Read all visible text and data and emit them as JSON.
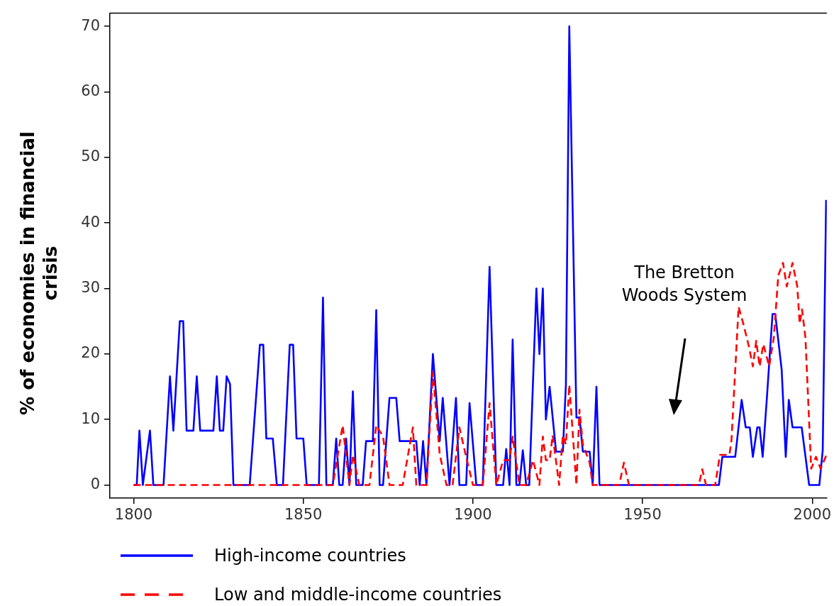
{
  "chart_data": {
    "type": "line",
    "ylabel": "% of economies in financial crisis",
    "xlim": [
      1793,
      2004.3
    ],
    "xticks": [
      1800,
      1850,
      1900,
      1950,
      2000
    ],
    "ylim": [
      -2,
      72
    ],
    "yticks": [
      0,
      10,
      20,
      30,
      40,
      50,
      60,
      70
    ],
    "grid": false,
    "legend": "bottom",
    "annotations": [
      "The Bretton Woods System"
    ],
    "series": [
      {
        "name": "High-income countries",
        "color": "#0000ff",
        "line_style": "solid",
        "x": [
          1800,
          1800.9,
          1801.7,
          1802.7,
          1804.8,
          1805.8,
          1808.8,
          1810.7,
          1811.7,
          1813.6,
          1814.6,
          1815.6,
          1817.6,
          1818.6,
          1819.6,
          1823.5,
          1824.5,
          1825.4,
          1826.4,
          1827.4,
          1828.4,
          1829.4,
          1834.2,
          1837.2,
          1838.2,
          1839.1,
          1841,
          1842.2,
          1844,
          1846,
          1847,
          1848,
          1850,
          1851,
          1854.6,
          1855.8,
          1856.8,
          1858.7,
          1859.7,
          1860.6,
          1861.6,
          1862.6,
          1863.6,
          1864.6,
          1865.6,
          1867.5,
          1868.5,
          1870.5,
          1871.5,
          1872.5,
          1873.5,
          1875.4,
          1877.4,
          1878.4,
          1883.3,
          1884.3,
          1885.3,
          1886.3,
          1888.2,
          1890.2,
          1891.1,
          1893.1,
          1895,
          1896,
          1898,
          1899,
          1901,
          1902.9,
          1904.9,
          1906.9,
          1908.9,
          1909.8,
          1910.8,
          1911.7,
          1912.8,
          1913.7,
          1914.7,
          1915.7,
          1916.6,
          1918.7,
          1919.6,
          1920.6,
          1921.5,
          1922.6,
          1924.5,
          1926.5,
          1927.4,
          1928.4,
          1930.5,
          1931.4,
          1932.4,
          1934.4,
          1935.3,
          1936.4,
          1937.3,
          1972.5,
          1973.5,
          1977.3,
          1979.2,
          1980.4,
          1981.6,
          1982.5,
          1983.8,
          1984.5,
          1985.4,
          1986.6,
          1988.3,
          1989.1,
          1991,
          1992.2,
          1993.1,
          1994.2,
          1996.9,
          1999.1,
          2002.1,
          2003.1,
          2004.1
        ],
        "values": [
          0,
          0,
          8.3,
          0,
          8.3,
          0,
          0,
          16.6,
          8.3,
          25,
          25,
          8.3,
          8.3,
          16.6,
          8.3,
          8.3,
          16.6,
          8.3,
          8.3,
          16.6,
          15.4,
          0,
          0,
          21.4,
          21.4,
          7.1,
          7.1,
          0,
          0,
          21.4,
          21.4,
          7.1,
          7.1,
          0,
          0,
          28.6,
          0,
          0,
          7.1,
          0,
          0,
          7.1,
          0,
          14.3,
          0,
          0,
          6.7,
          6.7,
          26.7,
          0,
          0,
          13.3,
          13.3,
          6.7,
          6.7,
          0,
          6.7,
          0,
          20,
          6.7,
          13.3,
          0,
          13.3,
          0,
          0,
          12.5,
          0,
          0,
          33.3,
          0,
          0,
          5.5,
          0,
          22.2,
          0,
          0,
          5.3,
          0,
          0,
          30,
          20,
          30,
          10,
          15,
          5.1,
          5.1,
          15.3,
          70,
          10.3,
          10.3,
          5.1,
          5.1,
          0,
          15,
          0,
          0,
          4.3,
          4.3,
          13,
          8.8,
          8.8,
          4.3,
          8.8,
          8.8,
          4.3,
          13,
          26.1,
          26.1,
          17.6,
          4.3,
          13,
          8.8,
          8.8,
          0,
          0,
          5.3,
          43.5
        ]
      },
      {
        "name": "Low and middle-income countries",
        "color": "#ff0000",
        "line_style": "dashed",
        "x": [
          1800,
          1858.7,
          1861.6,
          1863.6,
          1864.6,
          1866.5,
          1869.5,
          1871.5,
          1873.5,
          1875.4,
          1879.3,
          1882.3,
          1883.3,
          1886.3,
          1888.2,
          1890.2,
          1892.2,
          1894,
          1896,
          1898,
          1900,
          1902.9,
          1904.9,
          1906.9,
          1908.9,
          1910.8,
          1911.7,
          1913.7,
          1915.7,
          1917.7,
          1919.6,
          1920.6,
          1921.5,
          1922.6,
          1923.5,
          1925.4,
          1926.5,
          1927.4,
          1928.4,
          1930.5,
          1931.4,
          1932.4,
          1934.4,
          1935.3,
          1943.1,
          1944.5,
          1946,
          1966.6,
          1967.6,
          1968.7,
          1971.4,
          1972.8,
          1975.6,
          1976.2,
          1978.3,
          1979.7,
          1981.4,
          1982.5,
          1983.5,
          1984.5,
          1985.6,
          1987.3,
          1988.7,
          1990,
          1991.4,
          1992.5,
          1994.2,
          1995.6,
          1996.3,
          1997,
          1998,
          1999.7,
          2001.1,
          2002.5,
          2004.2
        ],
        "values": [
          0,
          0,
          9.1,
          0,
          4.6,
          0,
          0,
          9.1,
          7.4,
          0,
          0,
          8.8,
          0,
          0,
          17.2,
          4.7,
          0,
          0,
          8.8,
          4.3,
          0,
          0,
          12.5,
          0,
          3.8,
          3.8,
          7.4,
          0,
          0,
          3.8,
          0,
          7.4,
          3.8,
          3.8,
          7.6,
          0,
          7.6,
          6.2,
          15.3,
          0,
          11.5,
          6.2,
          3.4,
          0,
          0,
          3.4,
          0,
          0,
          2.4,
          0,
          0,
          4.6,
          4.6,
          6.8,
          27.2,
          24.6,
          21,
          18.1,
          22,
          18.1,
          21.5,
          18.1,
          22.6,
          32,
          33.9,
          30.3,
          33.9,
          30.3,
          24.6,
          26.8,
          22.5,
          2.5,
          4.3,
          2.5,
          4.6
        ]
      }
    ]
  }
}
